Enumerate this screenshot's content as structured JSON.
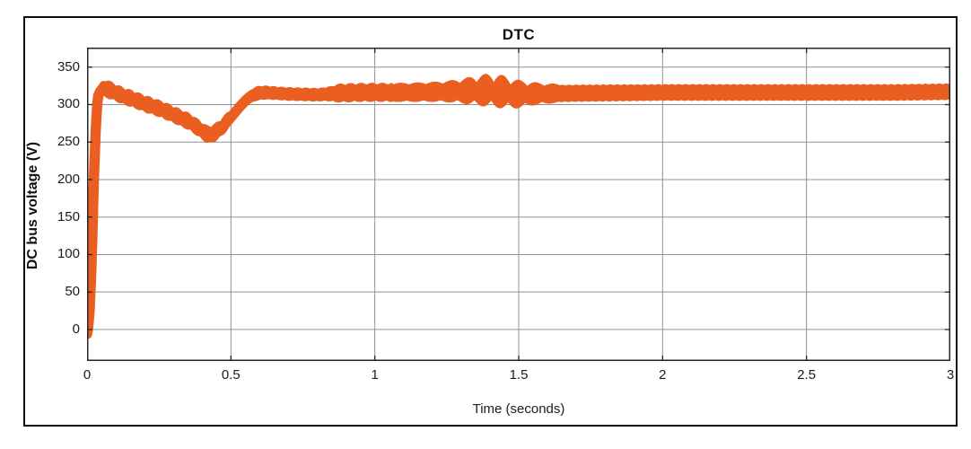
{
  "figure": {
    "title": "DTC",
    "border_color": "#0a0a0a",
    "background": "#ffffff"
  },
  "chart_data": {
    "type": "line",
    "title": "DTC",
    "xlabel": "Time (seconds)",
    "ylabel": "DC bus voltage (V)",
    "xlim": [
      0,
      3
    ],
    "ylim": [
      -42,
      376
    ],
    "grid": true,
    "legend": "none",
    "xticks": [
      0,
      0.5,
      1,
      1.5,
      2,
      2.5,
      3
    ],
    "xtick_labels": [
      "0",
      "0.5",
      "1",
      "1.5",
      "2",
      "2.5",
      "3"
    ],
    "yticks": [
      0,
      50,
      100,
      150,
      200,
      250,
      300,
      350
    ],
    "ytick_labels": [
      "0",
      "50",
      "100",
      "150",
      "200",
      "250",
      "300",
      "350"
    ],
    "series": [
      {
        "name": "DC bus voltage",
        "color": "#EA5F21",
        "x": [
          0.01,
          0.03,
          0.045,
          0.06,
          0.08,
          0.12,
          0.16,
          0.2,
          0.24,
          0.28,
          0.32,
          0.36,
          0.395,
          0.42,
          0.44,
          0.47,
          0.5,
          0.53,
          0.56,
          0.59,
          0.62,
          0.7,
          0.8,
          0.87,
          0.95,
          1.1,
          1.25,
          1.4,
          1.5,
          1.55,
          1.7,
          2.0,
          2.4,
          2.8,
          3.0
        ],
        "y": [
          -6,
          300,
          320,
          322,
          319,
          312,
          307,
          301,
          296,
          290,
          283,
          276,
          266,
          259,
          261,
          270,
          283,
          297,
          309,
          315,
          316,
          314,
          313,
          315,
          316,
          316,
          317,
          318,
          313,
          314,
          315,
          316,
          316,
          316,
          317
        ]
      }
    ],
    "band_halfwidth_volts": {
      "t": [
        0.01,
        0.045,
        0.1,
        0.4,
        0.43,
        0.6,
        0.65,
        0.82,
        0.88,
        1.05,
        1.42,
        1.6,
        2.0,
        3.0
      ],
      "s": [
        7,
        9,
        7.5,
        7.5,
        8,
        7,
        6.5,
        6.5,
        9,
        9,
        10,
        9,
        8.5,
        8.5
      ]
    },
    "ripple_zones": [
      {
        "t0": 0.065,
        "t1": 0.5,
        "freq": 30,
        "amp": 3.2
      },
      {
        "t0": 0.58,
        "t1": 0.86,
        "freq": 36,
        "amp": 1.3
      },
      {
        "t0": 0.86,
        "t1": 1.06,
        "freq": 27,
        "amp": 2.6
      },
      {
        "t0": 1.06,
        "t1": 1.64,
        "freq": 17,
        "amp": 2.5,
        "amp_peak": 12.5,
        "t_peak": 1.42,
        "sigma": 0.12
      },
      {
        "t0": 1.64,
        "t1": 3.0,
        "freq": 42,
        "amp": 1.3
      }
    ],
    "annotations": {
      "startup_peak_v": 325,
      "sag_min_v": 258,
      "sag_time_s": 0.42,
      "steady_state_v": 316,
      "oscillation_peak_time_s": 1.4
    }
  },
  "style": {
    "grid_color": "#909090",
    "axis_color": "#262626",
    "tick_label_color": "#1c1c1c",
    "curve_color": "#EA5F21"
  }
}
